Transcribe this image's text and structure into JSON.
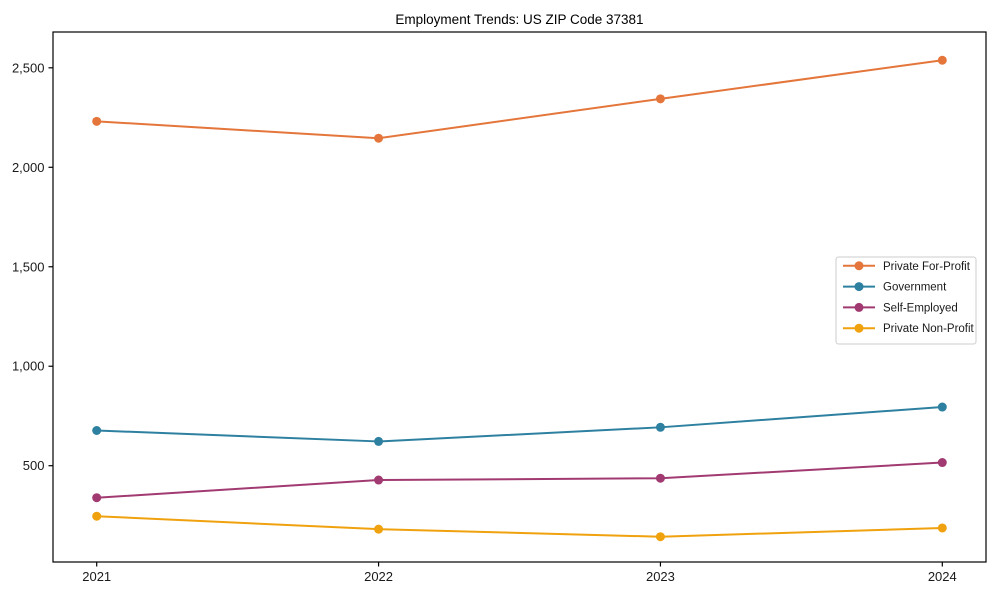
{
  "chart": {
    "title": "Employment Trends: US ZIP Code 37381"
  },
  "chart_data": {
    "type": "line",
    "title": "Employment Trends: US ZIP Code 37381",
    "xlabel": "",
    "ylabel": "",
    "x": [
      "2021",
      "2022",
      "2023",
      "2024"
    ],
    "series": [
      {
        "name": "Private For-Profit",
        "color": "#e4763b",
        "values": [
          2231,
          2146,
          2344,
          2538
        ]
      },
      {
        "name": "Government",
        "color": "#2e80a0",
        "values": [
          677,
          622,
          693,
          795
        ]
      },
      {
        "name": "Self-Employed",
        "color": "#a23a72",
        "values": [
          339,
          428,
          437,
          516
        ]
      },
      {
        "name": "Private Non-Profit",
        "color": "#f0a10e",
        "values": [
          246,
          181,
          143,
          187
        ]
      }
    ],
    "ylim": [
      16,
      2680
    ],
    "yticks": [
      {
        "value": 500,
        "label": "500"
      },
      {
        "value": 1000,
        "label": "1,000"
      },
      {
        "value": 1500,
        "label": "1,500"
      },
      {
        "value": 2000,
        "label": "2,000"
      },
      {
        "value": 2500,
        "label": "2,500"
      }
    ],
    "grid": false,
    "legend_position": "center-right",
    "marker": "circle",
    "frame": "full-box"
  }
}
